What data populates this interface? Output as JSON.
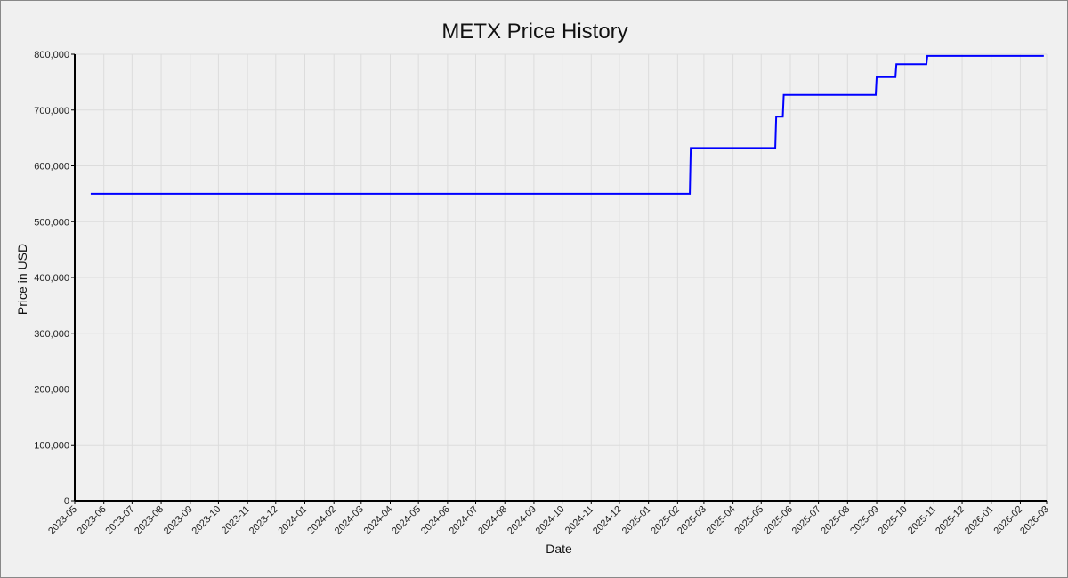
{
  "chart_data": {
    "type": "line",
    "title": "METX Price History",
    "xlabel": "Date",
    "ylabel": "Price in USD",
    "grid": true,
    "legend": "none",
    "line_style": "step",
    "color": "#0000ff",
    "ylim": [
      0,
      800000
    ],
    "yticks": [
      0,
      100000,
      200000,
      300000,
      400000,
      500000,
      600000,
      700000,
      800000
    ],
    "ytick_labels": [
      "0",
      "100,000",
      "200,000",
      "300,000",
      "400,000",
      "500,000",
      "600,000",
      "700,000",
      "800,000"
    ],
    "xlim": [
      "2023-05-01",
      "2026-03-01"
    ],
    "xticks": [
      "2023-05-01",
      "2023-06-01",
      "2023-07-01",
      "2023-08-01",
      "2023-09-01",
      "2023-10-01",
      "2023-11-01",
      "2023-12-01",
      "2024-01-01",
      "2024-02-01",
      "2024-03-01",
      "2024-04-01",
      "2024-05-01",
      "2024-06-01",
      "2024-07-01",
      "2024-08-01",
      "2024-09-01",
      "2024-10-01",
      "2024-11-01",
      "2024-12-01",
      "2025-01-01",
      "2025-02-01",
      "2025-03-01",
      "2025-04-01",
      "2025-05-01",
      "2025-06-01",
      "2025-07-01",
      "2025-08-01",
      "2025-09-01",
      "2025-10-01",
      "2025-11-01",
      "2025-12-01",
      "2026-01-01",
      "2026-02-01",
      "2026-03-01"
    ],
    "xtick_labels": [
      "2023-05",
      "2023-06",
      "2023-07",
      "2023-08",
      "2023-09",
      "2023-10",
      "2023-11",
      "2023-12",
      "2024-01",
      "2024-02",
      "2024-03",
      "2024-04",
      "2024-05",
      "2024-06",
      "2024-07",
      "2024-08",
      "2024-09",
      "2024-10",
      "2024-11",
      "2024-12",
      "2025-01",
      "2025-02",
      "2025-03",
      "2025-04",
      "2025-05",
      "2025-06",
      "2025-07",
      "2025-08",
      "2025-09",
      "2025-10",
      "2025-11",
      "2025-12",
      "2026-01",
      "2026-02",
      "2026-03"
    ],
    "series": [
      {
        "points": [
          {
            "x": "2023-05-18",
            "y": 550000
          },
          {
            "x": "2025-02-14",
            "y": 550000
          },
          {
            "x": "2025-02-15",
            "y": 632000
          },
          {
            "x": "2025-05-16",
            "y": 632000
          },
          {
            "x": "2025-05-17",
            "y": 688000
          },
          {
            "x": "2025-05-24",
            "y": 688000
          },
          {
            "x": "2025-05-25",
            "y": 727000
          },
          {
            "x": "2025-08-31",
            "y": 727000
          },
          {
            "x": "2025-09-01",
            "y": 759000
          },
          {
            "x": "2025-09-21",
            "y": 759000
          },
          {
            "x": "2025-09-22",
            "y": 782000
          },
          {
            "x": "2025-10-24",
            "y": 782000
          },
          {
            "x": "2025-10-25",
            "y": 797000
          },
          {
            "x": "2026-02-26",
            "y": 797000
          }
        ]
      }
    ]
  }
}
